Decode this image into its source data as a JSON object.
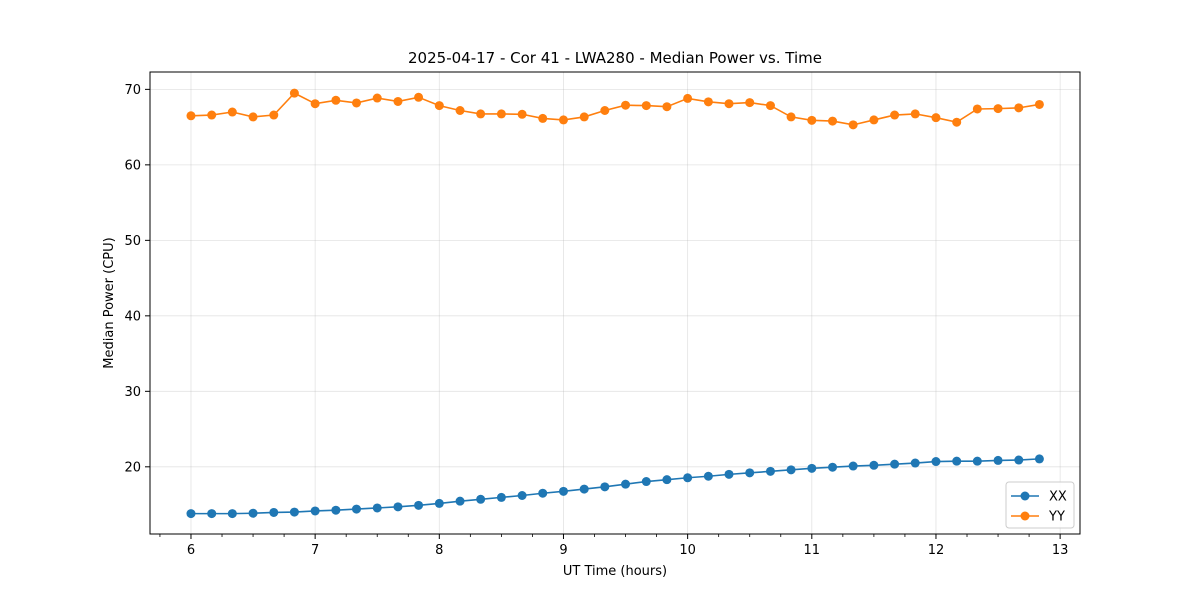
{
  "chart_data": {
    "type": "line",
    "title": "2025-04-17 - Cor 41 - LWA280 - Median Power vs. Time",
    "xlabel": "UT Time (hours)",
    "ylabel": "Median Power (CPU)",
    "xlim": [
      5.67,
      13.16
    ],
    "ylim": [
      11.1,
      72.3
    ],
    "xticks": [
      6,
      7,
      8,
      9,
      10,
      11,
      12,
      13
    ],
    "yticks": [
      20,
      30,
      40,
      50,
      60,
      70
    ],
    "grid": true,
    "legend_position": "lower-right",
    "x": [
      6.0,
      6.167,
      6.333,
      6.5,
      6.667,
      6.833,
      7.0,
      7.167,
      7.333,
      7.5,
      7.667,
      7.833,
      8.0,
      8.167,
      8.333,
      8.5,
      8.667,
      8.833,
      9.0,
      9.167,
      9.333,
      9.5,
      9.667,
      9.833,
      10.0,
      10.167,
      10.333,
      10.5,
      10.667,
      10.833,
      11.0,
      11.167,
      11.333,
      11.5,
      11.667,
      11.833,
      12.0,
      12.167,
      12.333,
      12.5,
      12.667,
      12.833
    ],
    "series": [
      {
        "name": "XX",
        "color": "#1f77b4",
        "values": [
          13.8,
          13.8,
          13.8,
          13.85,
          13.95,
          14.0,
          14.15,
          14.25,
          14.4,
          14.55,
          14.7,
          14.9,
          15.15,
          15.45,
          15.7,
          15.95,
          16.2,
          16.5,
          16.75,
          17.05,
          17.35,
          17.7,
          18.05,
          18.3,
          18.55,
          18.75,
          19.0,
          19.2,
          19.4,
          19.6,
          19.8,
          19.95,
          20.1,
          20.2,
          20.35,
          20.5,
          20.7,
          20.75,
          20.75,
          20.85,
          20.9,
          21.05
        ]
      },
      {
        "name": "YY",
        "color": "#ff7f0e",
        "values": [
          66.5,
          66.6,
          67.0,
          66.35,
          66.6,
          69.5,
          68.1,
          68.55,
          68.2,
          68.85,
          68.4,
          68.95,
          67.85,
          67.2,
          66.75,
          66.75,
          66.7,
          66.15,
          65.95,
          66.35,
          67.2,
          67.9,
          67.85,
          67.7,
          68.8,
          68.35,
          68.1,
          68.25,
          67.85,
          66.35,
          65.9,
          65.8,
          65.3,
          65.95,
          66.6,
          66.75,
          66.25,
          65.65,
          67.4,
          67.45,
          67.55,
          68.0
        ]
      }
    ]
  }
}
